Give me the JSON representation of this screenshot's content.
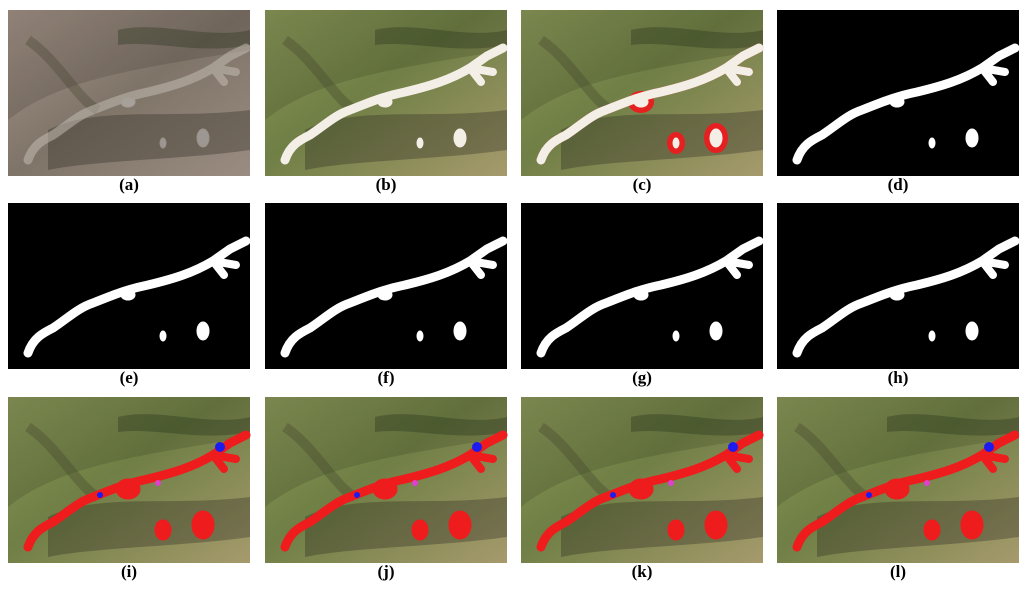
{
  "figure": {
    "panels": [
      {
        "label": "(a)"
      },
      {
        "label": "(b)"
      },
      {
        "label": "(c)"
      },
      {
        "label": "(d)"
      },
      {
        "label": "(e)"
      },
      {
        "label": "(f)"
      },
      {
        "label": "(g)"
      },
      {
        "label": "(h)"
      },
      {
        "label": "(i)"
      },
      {
        "label": "(j)"
      },
      {
        "label": "(k)"
      },
      {
        "label": "(l)"
      }
    ]
  }
}
